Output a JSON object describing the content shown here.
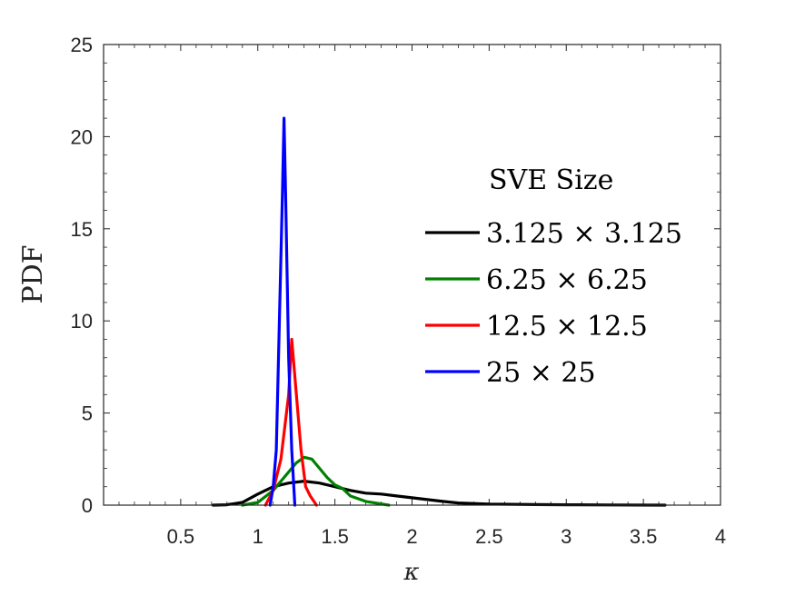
{
  "chart_data": {
    "type": "line",
    "title": "",
    "xlabel": "κ",
    "ylabel": "PDF",
    "xlim": [
      0,
      4
    ],
    "ylim": [
      0,
      25
    ],
    "x_ticks": [
      "0.5",
      "1",
      "1.5",
      "2",
      "2.5",
      "3",
      "3.5",
      "4"
    ],
    "x_tick_values": [
      0.5,
      1,
      1.5,
      2,
      2.5,
      3,
      3.5,
      4
    ],
    "y_ticks": [
      "0",
      "5",
      "10",
      "15",
      "20",
      "25"
    ],
    "y_tick_values": [
      0,
      5,
      10,
      15,
      20,
      25
    ],
    "grid": false,
    "box": true,
    "legend": {
      "title": "SVE Size",
      "placement": "right"
    },
    "series": [
      {
        "name": "3.125 × 3.125",
        "color": "#000000",
        "points": [
          [
            0.71,
            0.0
          ],
          [
            0.8,
            0.02
          ],
          [
            0.9,
            0.15
          ],
          [
            1.0,
            0.6
          ],
          [
            1.1,
            1.0
          ],
          [
            1.2,
            1.2
          ],
          [
            1.3,
            1.3
          ],
          [
            1.4,
            1.2
          ],
          [
            1.5,
            1.0
          ],
          [
            1.6,
            0.8
          ],
          [
            1.7,
            0.65
          ],
          [
            1.8,
            0.6
          ],
          [
            1.9,
            0.5
          ],
          [
            2.0,
            0.4
          ],
          [
            2.1,
            0.3
          ],
          [
            2.2,
            0.2
          ],
          [
            2.3,
            0.12
          ],
          [
            2.5,
            0.06
          ],
          [
            2.8,
            0.03
          ],
          [
            3.0,
            0.02
          ],
          [
            3.3,
            0.01
          ],
          [
            3.64,
            0.0
          ]
        ]
      },
      {
        "name": "6.25 × 6.25",
        "color": "#008000",
        "points": [
          [
            0.9,
            0.0
          ],
          [
            1.0,
            0.15
          ],
          [
            1.1,
            0.8
          ],
          [
            1.2,
            1.8
          ],
          [
            1.25,
            2.3
          ],
          [
            1.3,
            2.6
          ],
          [
            1.35,
            2.5
          ],
          [
            1.4,
            2.0
          ],
          [
            1.45,
            1.5
          ],
          [
            1.5,
            1.1
          ],
          [
            1.55,
            0.9
          ],
          [
            1.6,
            0.5
          ],
          [
            1.7,
            0.2
          ],
          [
            1.85,
            0.0
          ]
        ]
      },
      {
        "name": "12.5 × 12.5",
        "color": "#ff0000",
        "points": [
          [
            1.05,
            0.0
          ],
          [
            1.1,
            0.8
          ],
          [
            1.15,
            2.5
          ],
          [
            1.2,
            6.0
          ],
          [
            1.22,
            9.0
          ],
          [
            1.25,
            6.0
          ],
          [
            1.28,
            3.0
          ],
          [
            1.31,
            1.0
          ],
          [
            1.34,
            0.5
          ],
          [
            1.38,
            0.0
          ]
        ]
      },
      {
        "name": "25 × 25",
        "color": "#0000ff",
        "points": [
          [
            1.08,
            0.0
          ],
          [
            1.1,
            1.0
          ],
          [
            1.12,
            3.0
          ],
          [
            1.14,
            10.0
          ],
          [
            1.16,
            17.0
          ],
          [
            1.17,
            21.0
          ],
          [
            1.18,
            17.0
          ],
          [
            1.2,
            8.0
          ],
          [
            1.22,
            3.0
          ],
          [
            1.24,
            0.0
          ]
        ]
      }
    ]
  }
}
